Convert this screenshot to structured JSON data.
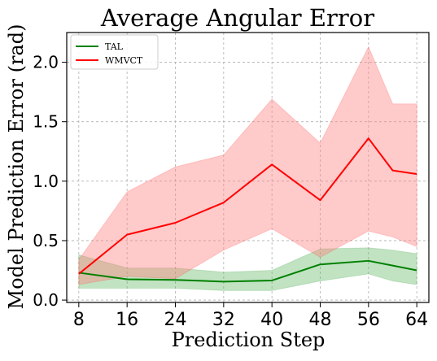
{
  "chart_data": {
    "type": "line",
    "title": "Average Angular Error",
    "xlabel": "Prediction Step",
    "ylabel": "Model Prediction Error (rad)",
    "x": [
      8,
      16,
      24,
      32,
      40,
      48,
      56,
      60,
      64
    ],
    "xticks": [
      "8",
      "16",
      "24",
      "32",
      "40",
      "48",
      "56",
      "64"
    ],
    "xlim": [
      6,
      66
    ],
    "ylim": [
      -0.02,
      2.25
    ],
    "yticks": [
      "0.0",
      "0.5",
      "1.0",
      "1.5",
      "2.0"
    ],
    "grid": true,
    "legend_position": "top-left",
    "series": [
      {
        "name": "TAL",
        "color": "#008000",
        "fill_color": "#4caf50",
        "values": [
          0.23,
          0.175,
          0.17,
          0.155,
          0.165,
          0.3,
          0.33,
          0.29,
          0.25
        ],
        "lower": [
          0.1,
          0.1,
          0.1,
          0.08,
          0.08,
          0.16,
          0.22,
          0.16,
          0.13
        ],
        "upper": [
          0.38,
          0.27,
          0.27,
          0.235,
          0.25,
          0.43,
          0.44,
          0.42,
          0.39
        ]
      },
      {
        "name": "WMVCT",
        "color": "#ff0000",
        "fill_color": "#ff8080",
        "values": [
          0.22,
          0.55,
          0.65,
          0.82,
          1.14,
          0.84,
          1.36,
          1.09,
          1.06
        ],
        "lower": [
          0.13,
          0.2,
          0.18,
          0.42,
          0.6,
          0.36,
          0.58,
          0.53,
          0.45
        ],
        "upper": [
          0.34,
          0.91,
          1.12,
          1.22,
          1.69,
          1.32,
          2.13,
          1.65,
          1.65
        ]
      }
    ]
  }
}
